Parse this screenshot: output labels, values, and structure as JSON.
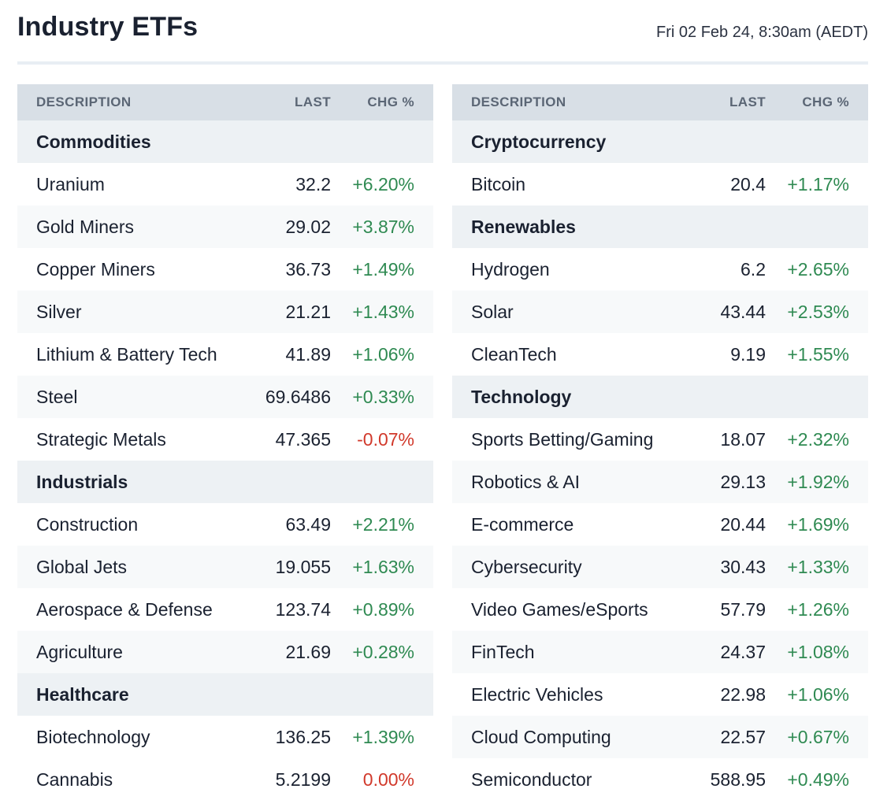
{
  "header": {
    "title": "Industry ETFs",
    "timestamp": "Fri 02 Feb 24, 8:30am (AEDT)"
  },
  "columns": {
    "description": "DESCRIPTION",
    "last": "LAST",
    "chg": "CHG %"
  },
  "colors": {
    "positive": "#2f8a52",
    "negative": "#d1392b",
    "header_bg": "#d8dfe6",
    "category_bg": "#edf1f4"
  },
  "left_table": [
    {
      "type": "category",
      "label": "Commodities"
    },
    {
      "type": "item",
      "label": "Uranium",
      "last": "32.2",
      "chg": "+6.20%",
      "dir": "pos"
    },
    {
      "type": "item",
      "label": "Gold Miners",
      "last": "29.02",
      "chg": "+3.87%",
      "dir": "pos"
    },
    {
      "type": "item",
      "label": "Copper Miners",
      "last": "36.73",
      "chg": "+1.49%",
      "dir": "pos"
    },
    {
      "type": "item",
      "label": "Silver",
      "last": "21.21",
      "chg": "+1.43%",
      "dir": "pos"
    },
    {
      "type": "item",
      "label": "Lithium & Battery Tech",
      "last": "41.89",
      "chg": "+1.06%",
      "dir": "pos"
    },
    {
      "type": "item",
      "label": "Steel",
      "last": "69.6486",
      "chg": "+0.33%",
      "dir": "pos"
    },
    {
      "type": "item",
      "label": "Strategic Metals",
      "last": "47.365",
      "chg": "-0.07%",
      "dir": "neg"
    },
    {
      "type": "category",
      "label": "Industrials"
    },
    {
      "type": "item",
      "label": "Construction",
      "last": "63.49",
      "chg": "+2.21%",
      "dir": "pos"
    },
    {
      "type": "item",
      "label": "Global Jets",
      "last": "19.055",
      "chg": "+1.63%",
      "dir": "pos"
    },
    {
      "type": "item",
      "label": "Aerospace & Defense",
      "last": "123.74",
      "chg": "+0.89%",
      "dir": "pos"
    },
    {
      "type": "item",
      "label": "Agriculture",
      "last": "21.69",
      "chg": "+0.28%",
      "dir": "pos"
    },
    {
      "type": "category",
      "label": "Healthcare"
    },
    {
      "type": "item",
      "label": "Biotechnology",
      "last": "136.25",
      "chg": "+1.39%",
      "dir": "pos"
    },
    {
      "type": "item",
      "label": "Cannabis",
      "last": "5.2199",
      "chg": "0.00%",
      "dir": "neg"
    }
  ],
  "right_table": [
    {
      "type": "category",
      "label": "Cryptocurrency"
    },
    {
      "type": "item",
      "label": "Bitcoin",
      "last": "20.4",
      "chg": "+1.17%",
      "dir": "pos"
    },
    {
      "type": "category",
      "label": "Renewables"
    },
    {
      "type": "item",
      "label": "Hydrogen",
      "last": "6.2",
      "chg": "+2.65%",
      "dir": "pos"
    },
    {
      "type": "item",
      "label": "Solar",
      "last": "43.44",
      "chg": "+2.53%",
      "dir": "pos"
    },
    {
      "type": "item",
      "label": "CleanTech",
      "last": "9.19",
      "chg": "+1.55%",
      "dir": "pos"
    },
    {
      "type": "category",
      "label": "Technology"
    },
    {
      "type": "item",
      "label": "Sports Betting/Gaming",
      "last": "18.07",
      "chg": "+2.32%",
      "dir": "pos"
    },
    {
      "type": "item",
      "label": "Robotics & AI",
      "last": "29.13",
      "chg": "+1.92%",
      "dir": "pos"
    },
    {
      "type": "item",
      "label": "E-commerce",
      "last": "20.44",
      "chg": "+1.69%",
      "dir": "pos"
    },
    {
      "type": "item",
      "label": "Cybersecurity",
      "last": "30.43",
      "chg": "+1.33%",
      "dir": "pos"
    },
    {
      "type": "item",
      "label": "Video Games/eSports",
      "last": "57.79",
      "chg": "+1.26%",
      "dir": "pos"
    },
    {
      "type": "item",
      "label": "FinTech",
      "last": "24.37",
      "chg": "+1.08%",
      "dir": "pos"
    },
    {
      "type": "item",
      "label": "Electric Vehicles",
      "last": "22.98",
      "chg": "+1.06%",
      "dir": "pos"
    },
    {
      "type": "item",
      "label": "Cloud Computing",
      "last": "22.57",
      "chg": "+0.67%",
      "dir": "pos"
    },
    {
      "type": "item",
      "label": "Semiconductor",
      "last": "588.95",
      "chg": "+0.49%",
      "dir": "pos"
    }
  ]
}
